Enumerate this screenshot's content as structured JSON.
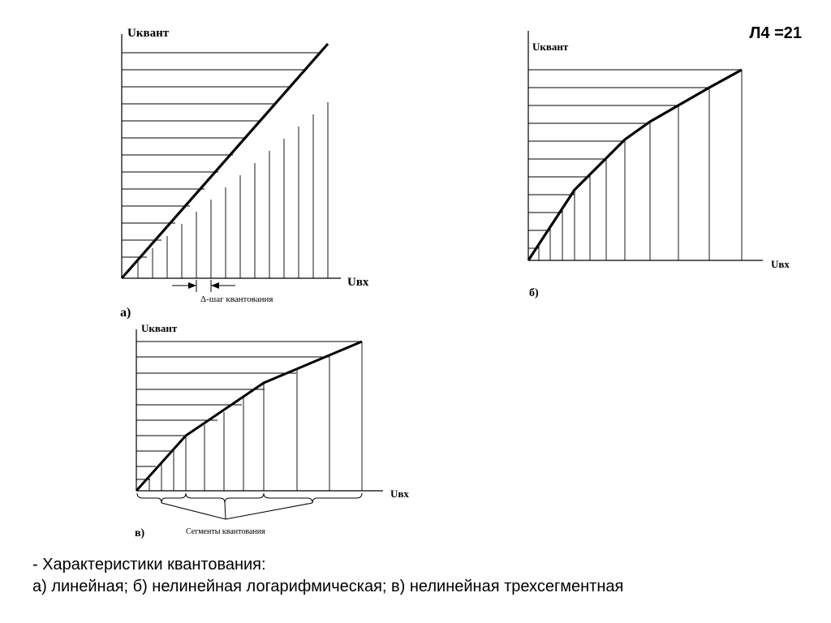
{
  "slide_label": "Л4 =21",
  "charts": {
    "a": {
      "y_label": "Uквант",
      "x_label": "Uвх",
      "panel_label": "а)",
      "step_annotation": "Δ-шаг квантования"
    },
    "b": {
      "y_label": "Uквант",
      "x_label": "Uвх",
      "panel_label": "б)"
    },
    "c": {
      "y_label": "Uквант",
      "x_label": "Uвх",
      "panel_label": "в)",
      "segments_annotation": "Сегменты квантования"
    }
  },
  "caption": {
    "line1": "- Характеристики квантования:",
    "line2": "а) линейная; б) нелинейная логарифмическая; в) нелинейная трехсегментная"
  }
}
